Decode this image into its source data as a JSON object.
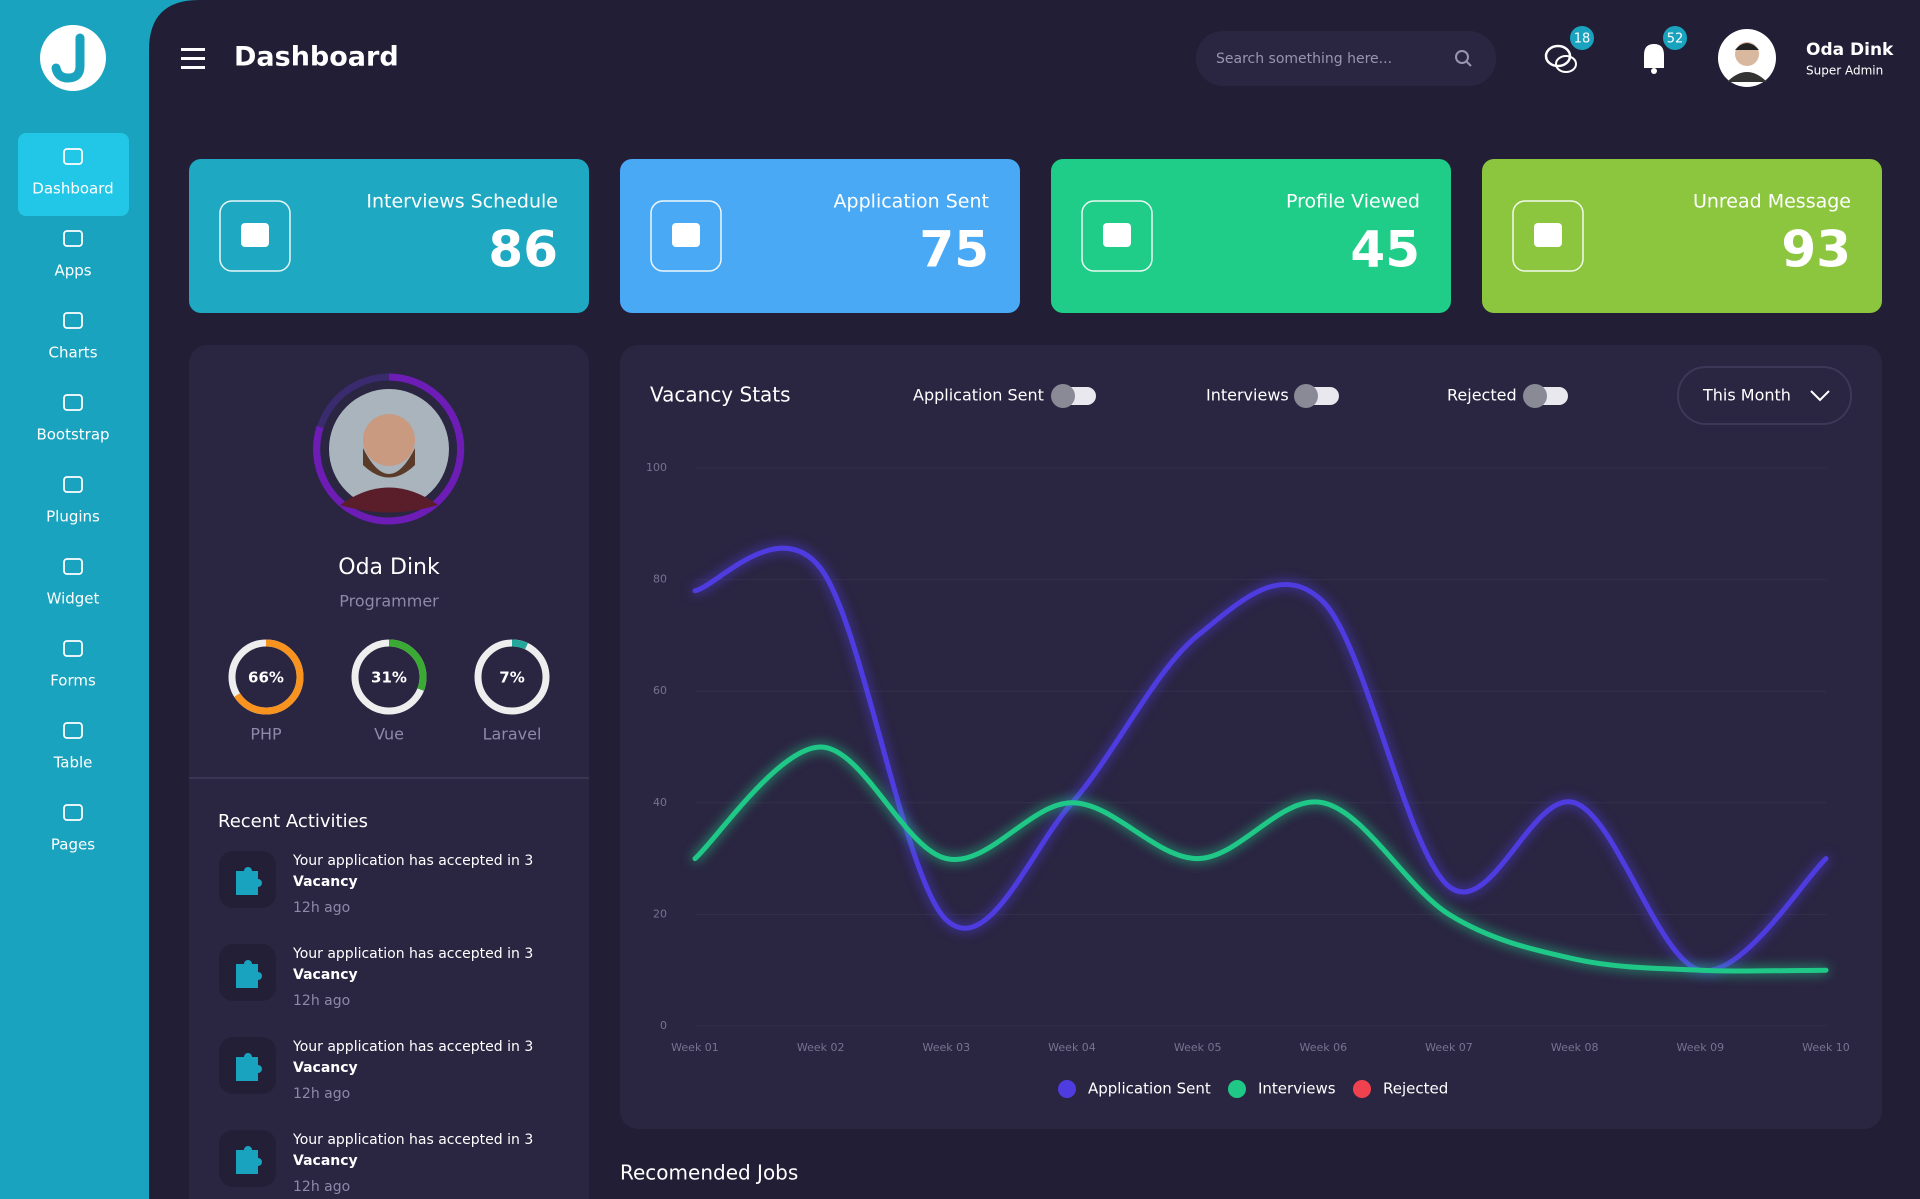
{
  "sidebar": {
    "items": [
      "Dashboard",
      "Apps",
      "Charts",
      "Bootstrap",
      "Plugins",
      "Widget",
      "Forms",
      "Table",
      "Pages"
    ]
  },
  "header": {
    "title": "Dashboard",
    "search_placeholder": "Search something here...",
    "messages_badge": 18,
    "notifications_badge": 52,
    "user_name": "Oda Dink",
    "user_role": "Super Admin"
  },
  "stats": [
    {
      "label": "Interviews Schedule",
      "value": 86,
      "color": "#1ea8c1"
    },
    {
      "label": "Application Sent",
      "value": 75,
      "color": "#4aa9f5"
    },
    {
      "label": "Profile Viewed",
      "value": 45,
      "color": "#1fcd88"
    },
    {
      "label": "Unread Message",
      "value": 93,
      "color": "#8cc63f"
    }
  ],
  "profile": {
    "name": "Oda Dink",
    "role": "Programmer",
    "skills": [
      {
        "name": "PHP",
        "value": 66,
        "label": "66%",
        "color": "#f7931e"
      },
      {
        "name": "Vue",
        "value": 31,
        "label": "31%",
        "color": "#3aaa35"
      },
      {
        "name": "Laravel",
        "value": 7,
        "label": "7%",
        "color": "#22a79a"
      }
    ]
  },
  "recent_activities": {
    "title": "Recent Activities",
    "items": [
      {
        "text": "Your application has accepted in 3",
        "bold": "Vacancy",
        "time": "12h ago"
      },
      {
        "text": "Your application has accepted in 3",
        "bold": "Vacancy",
        "time": "12h ago"
      },
      {
        "text": "Your application has accepted in 3",
        "bold": "Vacancy",
        "time": "12h ago"
      },
      {
        "text": "Your application has accepted in 3",
        "bold": "Vacancy",
        "time": "12h ago"
      }
    ]
  },
  "chart_data": {
    "type": "line",
    "title": "Vacancy Stats",
    "filter": "This Month",
    "categories": [
      "Week 01",
      "Week 02",
      "Week 03",
      "Week 04",
      "Week 05",
      "Week 06",
      "Week 07",
      "Week 08",
      "Week 09",
      "Week 10"
    ],
    "series": [
      {
        "name": "Application Sent",
        "color": "#4f3ce0",
        "values": [
          78,
          82,
          19,
          40,
          70,
          76,
          25,
          40,
          10,
          30
        ]
      },
      {
        "name": "Interviews",
        "color": "#20c887",
        "values": [
          30,
          50,
          30,
          40,
          30,
          40,
          20,
          12,
          10,
          10
        ]
      },
      {
        "name": "Rejected",
        "color": "#f0414f",
        "values": [
          null,
          null,
          null,
          null,
          null,
          null,
          null,
          null,
          null,
          null
        ]
      }
    ],
    "ylim": [
      0,
      100
    ],
    "yticks": [
      0,
      20,
      40,
      60,
      80,
      100
    ],
    "grid": true
  },
  "recommended_jobs": {
    "title": "Recomended Jobs"
  }
}
